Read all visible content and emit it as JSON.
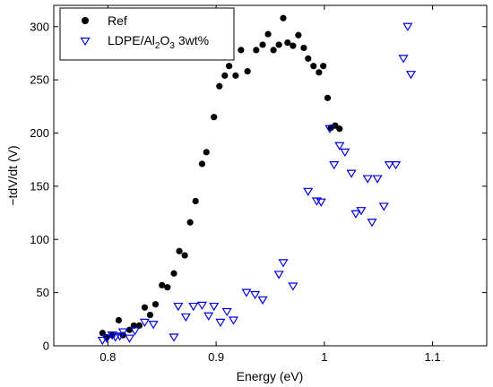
{
  "chart_data": {
    "type": "scatter",
    "xlabel": "Energy (eV)",
    "ylabel": "−tdV/dt (V)",
    "xlim": [
      0.75,
      1.15
    ],
    "ylim": [
      0,
      320
    ],
    "xticks": [
      0.8,
      0.9,
      1.0,
      1.1
    ],
    "xtick_labels": [
      "0.8",
      "0.9",
      "1",
      "1.1"
    ],
    "yticks": [
      0,
      50,
      100,
      150,
      200,
      250,
      300
    ],
    "ytick_labels": [
      "0",
      "50",
      "100",
      "150",
      "200",
      "250",
      "300"
    ],
    "grid": false,
    "legend_position": "top-left",
    "series": [
      {
        "name": "Ref",
        "marker": "filled-circle",
        "color": "#000000",
        "points": [
          [
            0.795,
            12
          ],
          [
            0.799,
            8
          ],
          [
            0.804,
            10
          ],
          [
            0.81,
            24
          ],
          [
            0.814,
            10
          ],
          [
            0.82,
            15
          ],
          [
            0.824,
            19
          ],
          [
            0.829,
            19
          ],
          [
            0.834,
            36
          ],
          [
            0.839,
            29
          ],
          [
            0.844,
            39
          ],
          [
            0.85,
            57
          ],
          [
            0.855,
            55
          ],
          [
            0.861,
            68
          ],
          [
            0.866,
            89
          ],
          [
            0.871,
            85
          ],
          [
            0.876,
            116
          ],
          [
            0.881,
            136
          ],
          [
            0.887,
            171
          ],
          [
            0.891,
            182
          ],
          [
            0.898,
            215
          ],
          [
            0.903,
            244
          ],
          [
            0.908,
            254
          ],
          [
            0.912,
            263
          ],
          [
            0.918,
            254
          ],
          [
            0.923,
            278
          ],
          [
            0.929,
            258
          ],
          [
            0.937,
            278
          ],
          [
            0.943,
            283
          ],
          [
            0.948,
            293
          ],
          [
            0.953,
            278
          ],
          [
            0.958,
            283
          ],
          [
            0.962,
            308
          ],
          [
            0.966,
            285
          ],
          [
            0.971,
            282
          ],
          [
            0.976,
            292
          ],
          [
            0.981,
            280
          ],
          [
            0.985,
            270
          ],
          [
            0.99,
            263
          ],
          [
            0.995,
            257
          ],
          [
            0.999,
            263
          ],
          [
            1.003,
            233
          ],
          [
            1.006,
            205
          ],
          [
            1.01,
            207
          ],
          [
            1.014,
            204
          ]
        ]
      },
      {
        "name": "LDPE/Al<sub>2</sub>O<sub>3</sub> 3wt%",
        "legend_parts": [
          "LDPE/Al",
          "2",
          "O",
          "3",
          " 3wt%"
        ],
        "marker": "open-triangle-down",
        "color": "#0000dd",
        "points": [
          [
            0.795,
            5
          ],
          [
            0.799,
            7
          ],
          [
            0.804,
            10
          ],
          [
            0.807,
            8
          ],
          [
            0.811,
            9
          ],
          [
            0.814,
            13
          ],
          [
            0.82,
            7
          ],
          [
            0.825,
            14
          ],
          [
            0.834,
            22
          ],
          [
            0.842,
            20
          ],
          [
            0.861,
            8
          ],
          [
            0.865,
            37
          ],
          [
            0.872,
            27
          ],
          [
            0.879,
            37
          ],
          [
            0.887,
            38
          ],
          [
            0.893,
            28
          ],
          [
            0.898,
            37
          ],
          [
            0.904,
            22
          ],
          [
            0.91,
            32
          ],
          [
            0.916,
            24
          ],
          [
            0.928,
            50
          ],
          [
            0.936,
            48
          ],
          [
            0.943,
            43
          ],
          [
            0.958,
            67
          ],
          [
            0.962,
            78
          ],
          [
            0.971,
            56
          ],
          [
            0.985,
            145
          ],
          [
            0.993,
            136
          ],
          [
            0.997,
            135
          ],
          [
            1.005,
            204
          ],
          [
            1.009,
            170
          ],
          [
            1.014,
            188
          ],
          [
            1.019,
            182
          ],
          [
            1.025,
            162
          ],
          [
            1.029,
            124
          ],
          [
            1.034,
            127
          ],
          [
            1.04,
            157
          ],
          [
            1.044,
            116
          ],
          [
            1.049,
            157
          ],
          [
            1.055,
            131
          ],
          [
            1.06,
            170
          ],
          [
            1.066,
            170
          ],
          [
            1.073,
            270
          ],
          [
            1.077,
            300
          ],
          [
            1.08,
            255
          ]
        ]
      }
    ]
  }
}
